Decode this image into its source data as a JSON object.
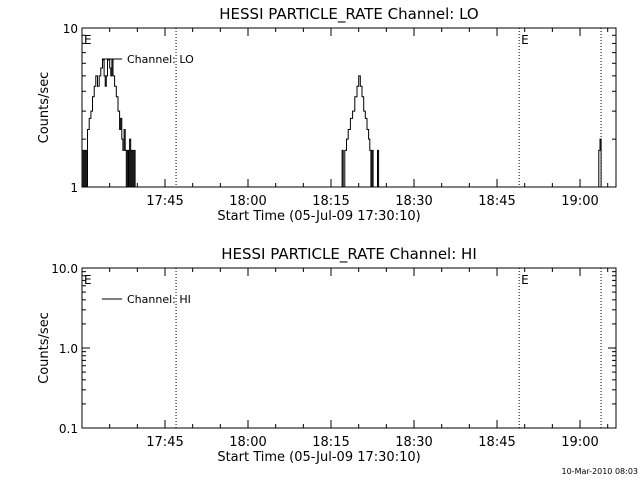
{
  "footer": {
    "timestamp": "10-Mar-2010 08:03"
  },
  "chart_data": [
    {
      "type": "line",
      "title": "HESSI PARTICLE_RATE Channel: LO",
      "xlabel": "Start Time (05-Jul-09 17:30:10)",
      "ylabel": "Counts/sec",
      "yscale": "log",
      "ylim": [
        1,
        10
      ],
      "xlim_minutes_after_17_30": [
        0,
        96.5
      ],
      "yticks": [
        {
          "value": 1,
          "label": "1"
        },
        {
          "value": 10,
          "label": "10"
        }
      ],
      "xticks": [
        {
          "t": 15,
          "label": "17:45"
        },
        {
          "t": 30,
          "label": "18:00"
        },
        {
          "t": 45,
          "label": "18:15"
        },
        {
          "t": 60,
          "label": "18:30"
        },
        {
          "t": 75,
          "label": "18:45"
        },
        {
          "t": 90,
          "label": "19:00"
        }
      ],
      "markers": [
        {
          "t": 0,
          "label": "E",
          "style": "text"
        },
        {
          "t": 17,
          "label": "",
          "style": "dotted"
        },
        {
          "t": 79,
          "label": "E",
          "style": "dotted"
        },
        {
          "t": 93.8,
          "label": "",
          "style": "dotted"
        }
      ],
      "legend": {
        "label": "Channel: LO",
        "position": "top-left"
      },
      "series": [
        {
          "name": "Channel: LO",
          "points": [
            [
              0,
              1
            ],
            [
              0.2,
              1.7
            ],
            [
              0.4,
              1
            ],
            [
              0.6,
              1.7
            ],
            [
              0.8,
              1
            ],
            [
              1,
              2.3
            ],
            [
              1.3,
              2.7
            ],
            [
              1.6,
              3
            ],
            [
              1.9,
              3.7
            ],
            [
              2.2,
              4.3
            ],
            [
              2.5,
              5
            ],
            [
              2.8,
              4.3
            ],
            [
              3.1,
              5
            ],
            [
              3.4,
              5.6
            ],
            [
              3.7,
              6.3
            ],
            [
              4,
              5
            ],
            [
              4.2,
              4.3
            ],
            [
              4.4,
              5
            ],
            [
              4.6,
              6.3
            ],
            [
              4.8,
              6.3
            ],
            [
              5,
              5.6
            ],
            [
              5.2,
              5
            ],
            [
              5.4,
              6.3
            ],
            [
              5.6,
              5
            ],
            [
              5.9,
              4.3
            ],
            [
              6.2,
              3.7
            ],
            [
              6.5,
              3
            ],
            [
              6.8,
              2.3
            ],
            [
              7,
              2.7
            ],
            [
              7.2,
              2
            ],
            [
              7.4,
              1.7
            ],
            [
              7.6,
              2.3
            ],
            [
              7.8,
              1.7
            ],
            [
              8,
              1
            ],
            [
              8.2,
              1.7
            ],
            [
              8.4,
              1
            ],
            [
              8.6,
              2
            ],
            [
              8.8,
              1
            ],
            [
              9,
              1.7
            ],
            [
              9.2,
              1
            ],
            [
              9.4,
              1.7
            ],
            [
              9.6,
              1
            ],
            [
              46.8,
              1
            ],
            [
              47,
              1.7
            ],
            [
              47.2,
              1
            ],
            [
              47.5,
              1.7
            ],
            [
              47.8,
              2
            ],
            [
              48.1,
              2.3
            ],
            [
              48.5,
              2.7
            ],
            [
              48.9,
              3
            ],
            [
              49.3,
              3.7
            ],
            [
              49.7,
              4.3
            ],
            [
              50,
              5
            ],
            [
              50.3,
              4.3
            ],
            [
              50.6,
              3.7
            ],
            [
              50.9,
              3
            ],
            [
              51.2,
              2.7
            ],
            [
              51.5,
              2.3
            ],
            [
              51.8,
              2
            ],
            [
              52,
              1.7
            ],
            [
              52.2,
              1
            ],
            [
              52.4,
              1.7
            ],
            [
              52.6,
              1
            ],
            [
              53.2,
              1
            ],
            [
              53.4,
              1.7
            ],
            [
              53.6,
              1
            ],
            [
              93.2,
              1
            ],
            [
              93.4,
              1.7
            ],
            [
              93.6,
              2
            ],
            [
              93.8,
              1
            ],
            [
              96.5,
              1
            ]
          ]
        }
      ]
    },
    {
      "type": "line",
      "title": "HESSI PARTICLE_RATE Channel: HI",
      "xlabel": "Start Time (05-Jul-09 17:30:10)",
      "ylabel": "Counts/sec",
      "yscale": "log",
      "ylim": [
        0.1,
        10
      ],
      "xlim_minutes_after_17_30": [
        0,
        96.5
      ],
      "yticks": [
        {
          "value": 0.1,
          "label": "0.1"
        },
        {
          "value": 1,
          "label": "1.0"
        },
        {
          "value": 10,
          "label": "10.0"
        }
      ],
      "xticks": [
        {
          "t": 15,
          "label": "17:45"
        },
        {
          "t": 30,
          "label": "18:00"
        },
        {
          "t": 45,
          "label": "18:15"
        },
        {
          "t": 60,
          "label": "18:30"
        },
        {
          "t": 75,
          "label": "18:45"
        },
        {
          "t": 90,
          "label": "19:00"
        }
      ],
      "markers": [
        {
          "t": 0,
          "label": "E",
          "style": "text"
        },
        {
          "t": 17,
          "label": "",
          "style": "dotted"
        },
        {
          "t": 79,
          "label": "E",
          "style": "dotted"
        },
        {
          "t": 93.8,
          "label": "",
          "style": "dotted"
        }
      ],
      "legend": {
        "label": "Channel: HI",
        "position": "top-left"
      },
      "series": [
        {
          "name": "Channel: HI",
          "points": []
        }
      ]
    }
  ]
}
